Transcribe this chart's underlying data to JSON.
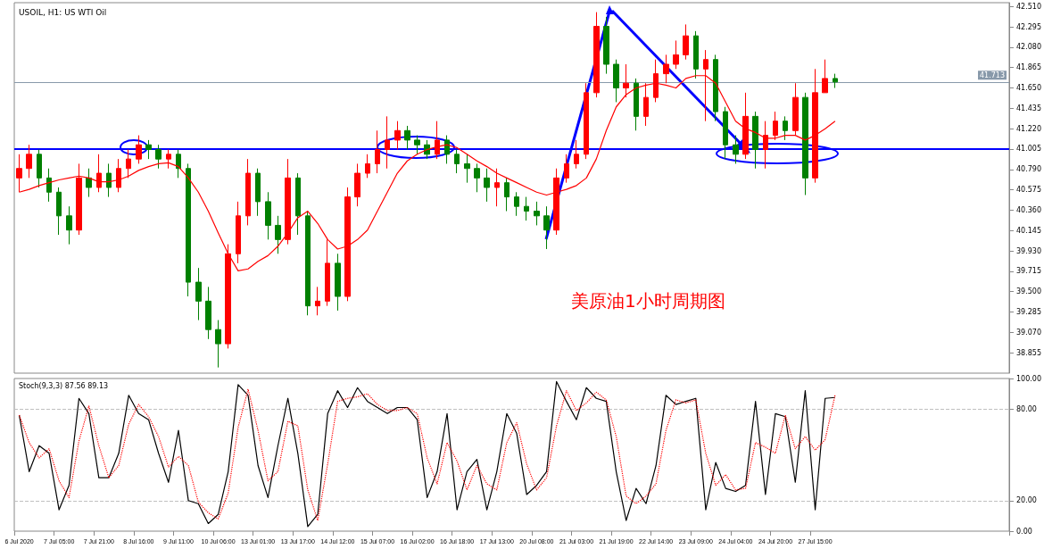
{
  "chart_data": [
    {
      "type": "candlestick",
      "title": "USOIL, H1: US WTI Oil",
      "categories": [
        null,
        null,
        null,
        null,
        null,
        null,
        null,
        null,
        null,
        null,
        null,
        null,
        null,
        null,
        null,
        null,
        null,
        null,
        null,
        null,
        null,
        null,
        null,
        null,
        null,
        null,
        null,
        null,
        null,
        null,
        null,
        null,
        null,
        null,
        null,
        null,
        null,
        null,
        null,
        null,
        null,
        null,
        null,
        null,
        null,
        null,
        null,
        null,
        null,
        null,
        null,
        null,
        null,
        null,
        null,
        null,
        null,
        null,
        null,
        null,
        null,
        null,
        null,
        null,
        null,
        null,
        null,
        null,
        null,
        null,
        null,
        null,
        null,
        null,
        null,
        null,
        null,
        null,
        null,
        null,
        null,
        null,
        null,
        null,
        null,
        null,
        null,
        null,
        null,
        null,
        null,
        null,
        null,
        null,
        null,
        null,
        null,
        null,
        null,
        null
      ],
      "ohlc": [
        [
          40.7,
          40.95,
          40.55,
          40.8
        ],
        [
          40.8,
          41.05,
          40.7,
          40.95
        ],
        [
          40.95,
          41.0,
          40.6,
          40.7
        ],
        [
          40.7,
          40.8,
          40.45,
          40.55
        ],
        [
          40.55,
          40.6,
          40.1,
          40.3
        ],
        [
          40.3,
          40.4,
          40.0,
          40.15
        ],
        [
          40.15,
          40.85,
          40.1,
          40.7
        ],
        [
          40.7,
          40.8,
          40.5,
          40.6
        ],
        [
          40.6,
          40.95,
          40.55,
          40.75
        ],
        [
          40.75,
          40.85,
          40.5,
          40.6
        ],
        [
          40.6,
          40.9,
          40.55,
          40.8
        ],
        [
          40.8,
          41.0,
          40.7,
          40.9
        ],
        [
          40.9,
          41.15,
          40.85,
          41.05
        ],
        [
          41.05,
          41.1,
          40.9,
          41.0
        ],
        [
          41.0,
          41.05,
          40.8,
          40.9
        ],
        [
          40.9,
          41.0,
          40.8,
          40.95
        ],
        [
          40.95,
          41.0,
          40.7,
          40.8
        ],
        [
          40.8,
          40.85,
          39.45,
          39.6
        ],
        [
          39.6,
          39.75,
          39.2,
          39.4
        ],
        [
          39.4,
          39.55,
          39.0,
          39.1
        ],
        [
          39.1,
          39.2,
          38.7,
          38.95
        ],
        [
          38.95,
          40.0,
          38.9,
          39.9
        ],
        [
          39.9,
          40.45,
          39.8,
          40.3
        ],
        [
          40.3,
          40.9,
          40.2,
          40.75
        ],
        [
          40.75,
          40.8,
          40.3,
          40.45
        ],
        [
          40.45,
          40.55,
          40.05,
          40.2
        ],
        [
          40.2,
          40.3,
          39.9,
          40.05
        ],
        [
          40.05,
          40.9,
          40.0,
          40.7
        ],
        [
          40.7,
          40.75,
          40.1,
          40.3
        ],
        [
          40.3,
          40.35,
          39.25,
          39.35
        ],
        [
          39.35,
          39.55,
          39.25,
          39.4
        ],
        [
          39.4,
          40.05,
          39.35,
          39.8
        ],
        [
          39.8,
          39.9,
          39.3,
          39.45
        ],
        [
          39.45,
          40.6,
          39.4,
          40.5
        ],
        [
          40.5,
          40.85,
          40.4,
          40.75
        ],
        [
          40.75,
          40.95,
          40.7,
          40.85
        ],
        [
          40.85,
          41.2,
          40.75,
          41.0
        ],
        [
          41.0,
          41.35,
          40.8,
          41.1
        ],
        [
          41.1,
          41.3,
          41.0,
          41.2
        ],
        [
          41.2,
          41.25,
          41.0,
          41.1
        ],
        [
          41.1,
          41.15,
          40.95,
          41.05
        ],
        [
          41.05,
          41.1,
          40.9,
          40.95
        ],
        [
          40.95,
          41.3,
          40.9,
          41.1
        ],
        [
          41.1,
          41.15,
          40.85,
          40.95
        ],
        [
          40.95,
          41.0,
          40.75,
          40.85
        ],
        [
          40.85,
          40.95,
          40.65,
          40.8
        ],
        [
          40.8,
          40.85,
          40.55,
          40.7
        ],
        [
          40.7,
          40.8,
          40.45,
          40.6
        ],
        [
          40.6,
          40.8,
          40.4,
          40.65
        ],
        [
          40.65,
          40.7,
          40.35,
          40.5
        ],
        [
          40.5,
          40.55,
          40.3,
          40.4
        ],
        [
          40.4,
          40.5,
          40.25,
          40.35
        ],
        [
          40.35,
          40.45,
          40.2,
          40.3
        ],
        [
          40.3,
          40.4,
          39.95,
          40.15
        ],
        [
          40.15,
          40.8,
          40.1,
          40.7
        ],
        [
          40.7,
          40.95,
          40.65,
          40.85
        ],
        [
          40.85,
          41.1,
          40.8,
          40.95
        ],
        [
          40.95,
          41.7,
          40.9,
          41.6
        ],
        [
          41.6,
          42.45,
          41.55,
          42.3
        ],
        [
          42.3,
          42.4,
          41.8,
          41.9
        ],
        [
          41.9,
          41.95,
          41.5,
          41.65
        ],
        [
          41.65,
          41.9,
          41.55,
          41.7
        ],
        [
          41.7,
          41.75,
          41.2,
          41.35
        ],
        [
          41.35,
          41.7,
          41.25,
          41.55
        ],
        [
          41.55,
          41.95,
          41.5,
          41.8
        ],
        [
          41.8,
          42.0,
          41.7,
          41.9
        ],
        [
          41.9,
          42.15,
          41.85,
          42.0
        ],
        [
          42.0,
          42.32,
          41.95,
          42.2
        ],
        [
          42.2,
          42.25,
          41.75,
          41.85
        ],
        [
          41.85,
          42.05,
          41.3,
          41.95
        ],
        [
          41.95,
          42.0,
          41.3,
          41.4
        ],
        [
          41.4,
          41.45,
          40.9,
          41.05
        ],
        [
          41.05,
          41.15,
          40.85,
          40.95
        ],
        [
          40.95,
          41.6,
          40.9,
          41.35
        ],
        [
          41.35,
          41.4,
          40.8,
          41.0
        ],
        [
          41.0,
          41.3,
          40.8,
          41.15
        ],
        [
          41.15,
          41.4,
          41.1,
          41.3
        ],
        [
          41.3,
          41.35,
          41.1,
          41.2
        ],
        [
          41.2,
          41.7,
          41.15,
          41.55
        ],
        [
          41.55,
          41.6,
          40.52,
          40.7
        ],
        [
          40.7,
          41.85,
          40.65,
          41.6
        ],
        [
          41.6,
          41.95,
          41.6,
          41.75
        ],
        [
          41.75,
          41.8,
          41.65,
          41.713
        ],
        null,
        null,
        null,
        null,
        null,
        null,
        null,
        null,
        null,
        null,
        null,
        null,
        null,
        null,
        null,
        null,
        null
      ],
      "colors": [
        "#ff0000",
        "#ff0000",
        "#008000",
        "#008000",
        "#008000",
        "#008000",
        "#ff0000",
        "#008000",
        "#ff0000",
        "#008000",
        "#ff0000",
        "#ff0000",
        "#ff0000",
        "#008000",
        "#008000",
        "#ff0000",
        "#008000",
        "#008000",
        "#008000",
        "#008000",
        "#008000",
        "#ff0000",
        "#ff0000",
        "#ff0000",
        "#008000",
        "#008000",
        "#008000",
        "#ff0000",
        "#008000",
        "#008000",
        "#ff0000",
        "#ff0000",
        "#008000",
        "#ff0000",
        "#ff0000",
        "#ff0000",
        "#ff0000",
        "#ff0000",
        "#ff0000",
        "#008000",
        "#008000",
        "#008000",
        "#ff0000",
        "#008000",
        "#008000",
        "#008000",
        "#008000",
        "#008000",
        "#ff0000",
        "#008000",
        "#008000",
        "#008000",
        "#008000",
        "#008000",
        "#ff0000",
        "#ff0000",
        "#ff0000",
        "#ff0000",
        "#ff0000",
        "#008000",
        "#008000",
        "#ff0000",
        "#008000",
        "#ff0000",
        "#ff0000",
        "#ff0000",
        "#ff0000",
        "#ff0000",
        "#008000",
        "#ff0000",
        "#008000",
        "#008000",
        "#008000",
        "#ff0000",
        "#008000",
        "#ff0000",
        "#ff0000",
        "#008000",
        "#ff0000",
        "#008000",
        "#ff0000",
        "#ff0000",
        "#008000",
        null,
        null,
        null,
        null,
        null,
        null,
        null,
        null,
        null,
        null,
        null,
        null,
        null,
        null,
        null,
        null,
        null
      ],
      "series": [
        {
          "type": "line",
          "color": "#ff0000",
          "values": [
            40.55,
            40.58,
            40.62,
            40.65,
            40.68,
            40.7,
            40.72,
            40.7,
            40.66,
            40.66,
            40.68,
            40.72,
            40.78,
            40.82,
            40.85,
            40.86,
            40.82,
            40.7,
            40.55,
            40.35,
            40.12,
            39.9,
            39.72,
            39.74,
            39.82,
            39.88,
            39.98,
            40.12,
            40.28,
            40.35,
            40.22,
            40.05,
            39.95,
            39.98,
            40.05,
            40.15,
            40.35,
            40.55,
            40.75,
            40.88,
            40.95,
            41.0,
            41.03,
            41.05,
            41.02,
            40.95,
            40.88,
            40.82,
            40.75,
            40.7,
            40.65,
            40.6,
            40.55,
            40.52,
            40.55,
            40.58,
            40.62,
            40.7,
            40.9,
            41.2,
            41.45,
            41.58,
            41.65,
            41.68,
            41.7,
            41.68,
            41.65,
            41.75,
            41.78,
            41.78,
            41.7,
            41.5,
            41.3,
            41.22,
            41.18,
            41.12,
            41.12,
            41.15,
            41.15,
            41.1,
            41.15,
            41.22,
            41.3,
            null,
            null,
            null,
            null,
            null,
            null,
            null,
            null,
            null,
            null,
            null,
            null,
            null,
            null,
            null,
            null,
            null
          ]
        }
      ],
      "ylim": [
        38.64,
        42.55
      ],
      "yticks": [
        {
          "value": 42.51,
          "label": "42.510"
        },
        {
          "value": 42.295,
          "label": "42.295"
        },
        {
          "value": 42.08,
          "label": "42.080"
        },
        {
          "value": 41.865,
          "label": "41.865"
        },
        {
          "value": 41.65,
          "label": "41.650"
        },
        {
          "value": 41.435,
          "label": "41.435"
        },
        {
          "value": 41.22,
          "label": "41.220"
        },
        {
          "value": 41.005,
          "label": "41.005"
        },
        {
          "value": 40.79,
          "label": "40.790"
        },
        {
          "value": 40.575,
          "label": "40.575"
        },
        {
          "value": 40.36,
          "label": "40.360"
        },
        {
          "value": 40.145,
          "label": "40.145"
        },
        {
          "value": 39.93,
          "label": "39.930"
        },
        {
          "value": 39.715,
          "label": "39.715"
        },
        {
          "value": 39.5,
          "label": "39.500"
        },
        {
          "value": 39.285,
          "label": "39.285"
        },
        {
          "value": 39.07,
          "label": "39.070"
        },
        {
          "value": 38.855,
          "label": "38.855"
        }
      ],
      "ref_lines": [
        {
          "axis": "y",
          "value": 41.005,
          "color": "#0000ff"
        },
        {
          "axis": "y",
          "value": 41.713,
          "label": "41.713",
          "color": "#8899aa"
        }
      ],
      "annotations": [
        "美原油1小时周期图"
      ],
      "tick_labels": "y",
      "grid": false
    },
    {
      "type": "line",
      "title": "Stoch(9,3,3) 87.56 89.13",
      "categories": [
        "6 Jul 2020",
        null,
        null,
        null,
        "7 Jul 05:00",
        null,
        null,
        null,
        "7 Jul 21:00",
        null,
        null,
        null,
        "8 Jul 16:00",
        null,
        null,
        null,
        "9 Jul 11:00",
        null,
        null,
        null,
        "10 Jul 06:00",
        null,
        null,
        null,
        "13 Jul 01:00",
        null,
        null,
        null,
        "13 Jul 17:00",
        null,
        null,
        null,
        "14 Jul 12:00",
        null,
        null,
        null,
        "15 Jul 07:00",
        null,
        null,
        null,
        "16 Jul 02:00",
        null,
        null,
        null,
        "16 Jul 18:00",
        null,
        null,
        null,
        "17 Jul 13:00",
        null,
        null,
        null,
        "20 Jul 08:00",
        null,
        null,
        null,
        "21 Jul 03:00",
        null,
        null,
        null,
        "21 Jul 19:00",
        null,
        null,
        null,
        "22 Jul 14:00",
        null,
        null,
        null,
        "23 Jul 09:00",
        null,
        null,
        null,
        "24 Jul 04:00",
        null,
        null,
        null,
        "24 Jul 20:00",
        null,
        null,
        null,
        "27 Jul 15:00",
        null,
        null,
        null,
        null,
        null,
        null,
        null,
        null,
        null,
        null,
        null,
        null,
        null,
        null,
        null,
        null,
        null,
        null,
        null
      ],
      "series": [
        {
          "color": "#000000",
          "line_style": "solid",
          "values": [
            76,
            39,
            56,
            51,
            14,
            30,
            87,
            77,
            35,
            35,
            51,
            89,
            77,
            73,
            51,
            32,
            66,
            20,
            18,
            5,
            11,
            39,
            96,
            89,
            43,
            22,
            56,
            87,
            51,
            3,
            11,
            77,
            92,
            81,
            94,
            85,
            81,
            77,
            81,
            81,
            73,
            22,
            39,
            77,
            14,
            39,
            47,
            14,
            39,
            77,
            64,
            24,
            30,
            39,
            98,
            85,
            73,
            94,
            87,
            85,
            39,
            7,
            28,
            18,
            43,
            89,
            83,
            85,
            87,
            14,
            45,
            28,
            26,
            30,
            85,
            24,
            77,
            75,
            32,
            92,
            14,
            87,
            87.56,
            null,
            null,
            null,
            null,
            null,
            null,
            null,
            null,
            null,
            null,
            null,
            null,
            null,
            null,
            null,
            null,
            null
          ]
        },
        {
          "color": "#ff0000",
          "line_style": "dotted",
          "values": [
            76,
            58,
            48,
            54,
            33,
            22,
            59,
            82,
            56,
            35,
            43,
            70,
            83,
            75,
            62,
            42,
            49,
            43,
            19,
            12,
            8,
            25,
            68,
            93,
            66,
            33,
            39,
            72,
            69,
            27,
            7,
            44,
            85,
            87,
            88,
            90,
            83,
            79,
            79,
            81,
            77,
            48,
            31,
            58,
            46,
            27,
            43,
            31,
            27,
            58,
            71,
            44,
            27,
            35,
            69,
            92,
            79,
            84,
            91,
            86,
            62,
            23,
            18,
            23,
            31,
            66,
            86,
            84,
            86,
            51,
            30,
            37,
            27,
            28,
            58,
            55,
            51,
            76,
            54,
            62,
            53,
            60,
            89.13,
            null,
            null,
            null,
            null,
            null,
            null,
            null,
            null,
            null,
            null,
            null,
            null,
            null,
            null,
            null,
            null,
            null
          ]
        }
      ],
      "ylim": [
        0,
        100
      ],
      "yticks": [
        {
          "value": 100,
          "label": "100.00"
        },
        {
          "value": 80,
          "label": "80.00"
        },
        {
          "value": 20,
          "label": "20.00"
        },
        {
          "value": 0,
          "label": "0.00"
        }
      ],
      "ref_lines": [
        {
          "axis": "y",
          "value": 80,
          "color": "#c0c0c0",
          "line_style": "dashed"
        },
        {
          "axis": "y",
          "value": 20,
          "color": "#c0c0c0",
          "line_style": "dashed"
        }
      ],
      "marker": "none",
      "grid": false
    }
  ]
}
